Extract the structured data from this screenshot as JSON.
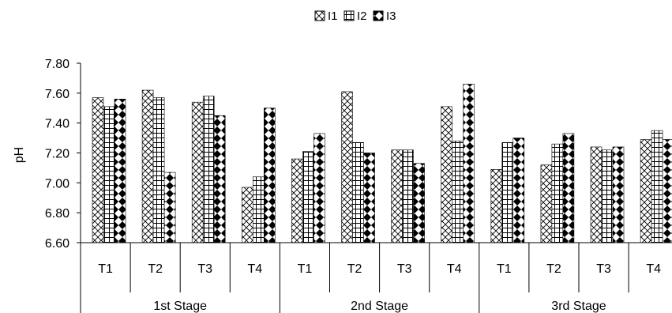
{
  "chart_data": {
    "type": "bar",
    "title": "",
    "xlabel": "",
    "ylabel": "pH",
    "ylim": [
      6.6,
      7.8
    ],
    "yticks": [
      "6.60",
      "6.80",
      "7.00",
      "7.20",
      "7.40",
      "7.60",
      "7.80"
    ],
    "grid": false,
    "legend_position": "top-center",
    "groups": [
      {
        "name": "1st Stage",
        "categories": [
          "T1",
          "T2",
          "T3",
          "T4"
        ]
      },
      {
        "name": "2nd Stage",
        "categories": [
          "T1",
          "T2",
          "T3",
          "T4"
        ]
      },
      {
        "name": "3rd Stage",
        "categories": [
          "T1",
          "T2",
          "T3",
          "T4"
        ]
      }
    ],
    "categories": [
      "T1",
      "T2",
      "T3",
      "T4",
      "T1",
      "T2",
      "T3",
      "T4",
      "T1",
      "T2",
      "T3",
      "T4"
    ],
    "series": [
      {
        "name": "I1",
        "pattern": "diagonal-cross",
        "values": [
          7.57,
          7.62,
          7.54,
          6.97,
          7.16,
          7.61,
          7.22,
          7.51,
          7.09,
          7.12,
          7.24,
          7.29
        ]
      },
      {
        "name": "I2",
        "pattern": "grid",
        "values": [
          7.51,
          7.57,
          7.58,
          7.04,
          7.21,
          7.27,
          7.22,
          7.28,
          7.27,
          7.26,
          7.22,
          7.35
        ]
      },
      {
        "name": "I3",
        "pattern": "diamonds",
        "values": [
          7.56,
          7.07,
          7.45,
          7.5,
          7.33,
          7.2,
          7.13,
          7.66,
          7.3,
          7.33,
          7.24,
          7.29
        ]
      }
    ]
  }
}
